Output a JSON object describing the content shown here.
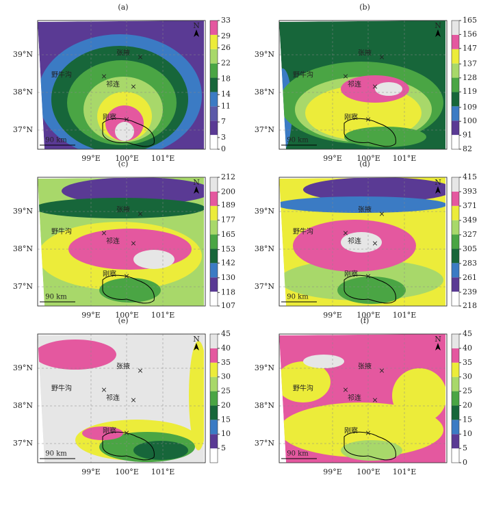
{
  "panels": [
    {
      "label": "(a)",
      "colorbar": {
        "lim": [
          0,
          33
        ],
        "ticks": [
          0,
          3,
          7,
          11,
          14,
          18,
          22,
          26,
          29,
          33
        ],
        "colors": [
          "#ffffff",
          "#5a3a94",
          "#5b5aa8",
          "#3b7bc4",
          "#17663a",
          "#4aa544",
          "#a8d86a",
          "#ecec3a",
          "#e4589f"
        ]
      }
    },
    {
      "label": "(b)",
      "colorbar": {
        "lim": [
          82,
          165
        ],
        "ticks": [
          82,
          91,
          100,
          109,
          119,
          128,
          137,
          147,
          156,
          165
        ],
        "colors": [
          "#ffffff",
          "#5a3a94",
          "#3b7bc4",
          "#17663a",
          "#4aa544",
          "#a8d86a",
          "#ecec3a",
          "#e4589f",
          "#e6e6e6"
        ]
      }
    },
    {
      "label": "(c)",
      "colorbar": {
        "lim": [
          107,
          212
        ],
        "ticks": [
          107,
          118,
          130,
          142,
          153,
          165,
          177,
          189,
          200,
          212
        ],
        "colors": [
          "#ffffff",
          "#5a3a94",
          "#3b7bc4",
          "#17663a",
          "#4aa544",
          "#a8d86a",
          "#ecec3a",
          "#e4589f",
          "#e6e6e6"
        ]
      }
    },
    {
      "label": "(d)",
      "colorbar": {
        "lim": [
          218,
          415
        ],
        "ticks": [
          218,
          239,
          261,
          283,
          305,
          327,
          349,
          371,
          393,
          415
        ],
        "colors": [
          "#ffffff",
          "#5a3a94",
          "#3b7bc4",
          "#17663a",
          "#4aa544",
          "#a8d86a",
          "#ecec3a",
          "#e4589f",
          "#e6e6e6"
        ]
      }
    },
    {
      "label": "(e)",
      "colorbar": {
        "lim": [
          0,
          45
        ],
        "ticks": [
          5,
          10,
          15,
          20,
          25,
          30,
          35,
          40,
          45
        ],
        "colors": [
          "#ffffff",
          "#5a3a94",
          "#3b7bc4",
          "#17663a",
          "#4aa544",
          "#a8d86a",
          "#ecec3a",
          "#e4589f",
          "#e6e6e6"
        ]
      }
    },
    {
      "label": "(f)",
      "colorbar": {
        "lim": [
          0,
          45
        ],
        "ticks": [
          0,
          5,
          10,
          15,
          20,
          25,
          30,
          35,
          40,
          45
        ],
        "colors": [
          "#ffffff",
          "#5a3a94",
          "#3b7bc4",
          "#17663a",
          "#4aa544",
          "#a8d86a",
          "#ecec3a",
          "#e4589f",
          "#e6e6e6"
        ]
      }
    }
  ],
  "places": {
    "zhangye": "张掖",
    "yeniugou": "野牛沟",
    "qilian": "祁连",
    "gangcha": "刚察"
  },
  "lat_labels": [
    "39°N",
    "38°N",
    "37°N"
  ],
  "lon_labels": [
    "99°E",
    "100°E",
    "101°E"
  ],
  "scale": "90 km",
  "north": "N"
}
